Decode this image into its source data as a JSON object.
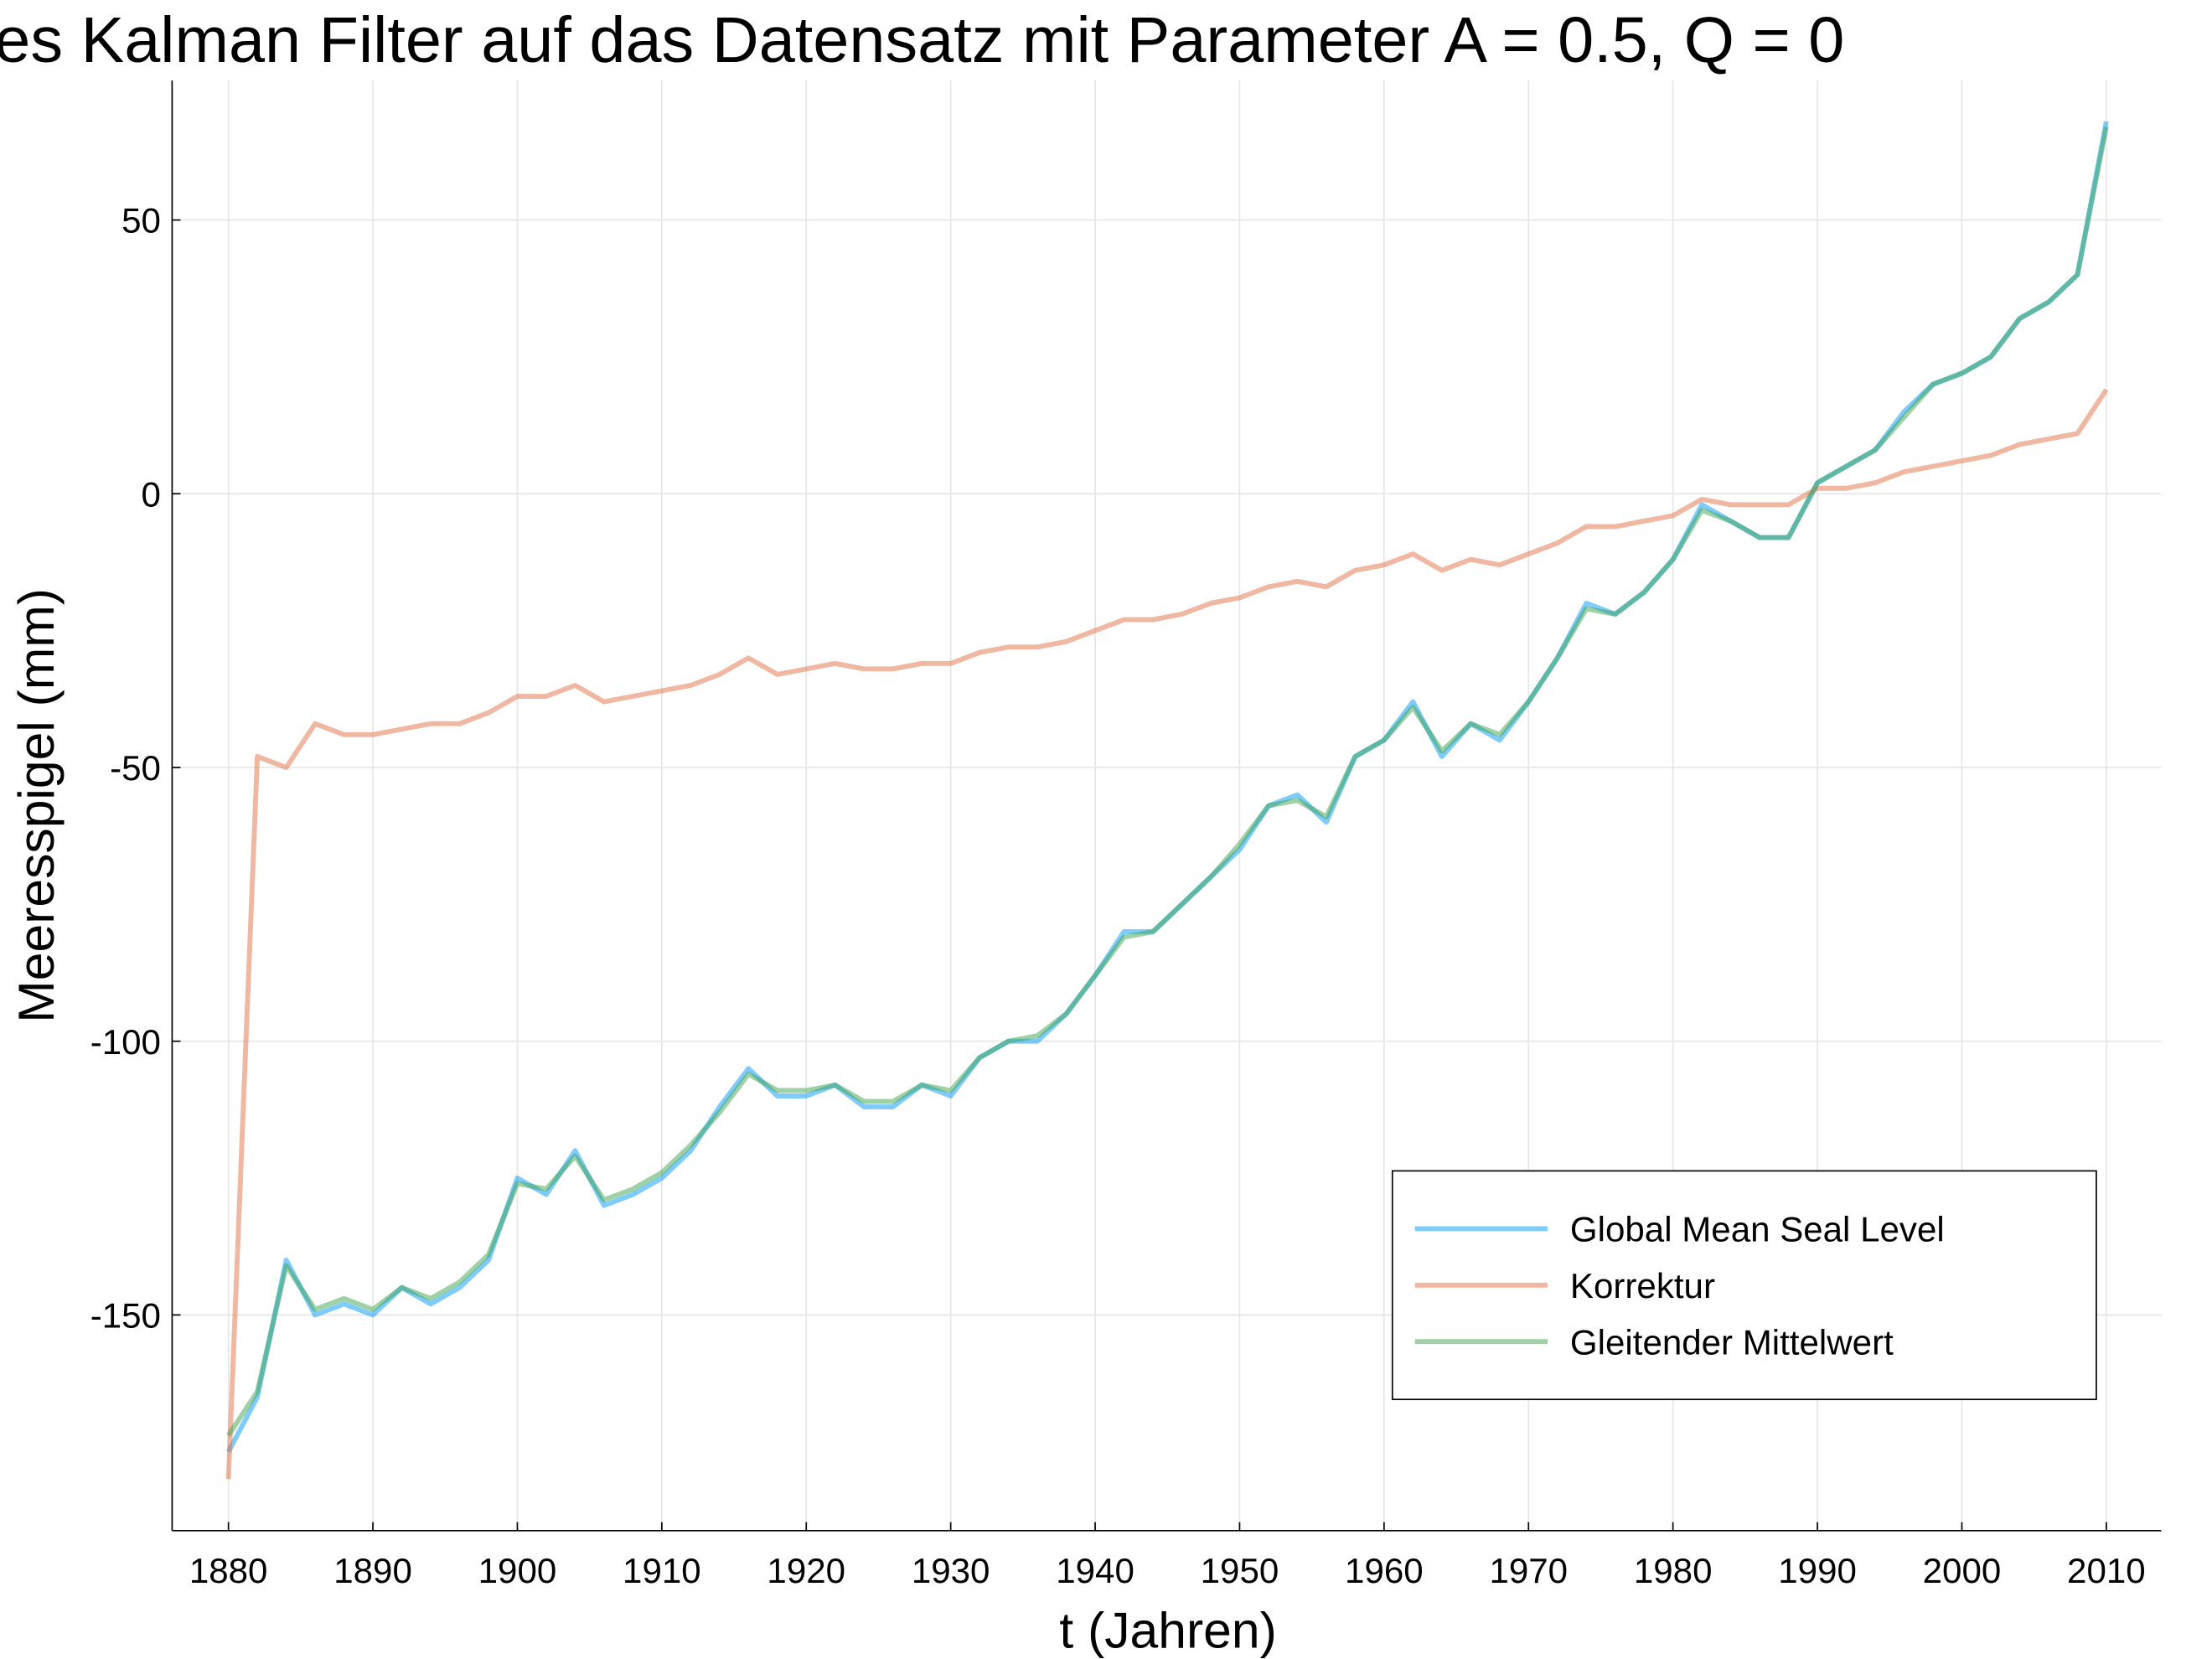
{
  "chart_data": {
    "type": "line",
    "title": "es Kalman Filter auf das Datensatz mit Parameter A = 0.5, Q = 0",
    "x_label": "t (Jahren)",
    "y_label": "Meeresspigel (mm)",
    "x": [
      1880,
      1882,
      1884,
      1886,
      1888,
      1890,
      1892,
      1894,
      1896,
      1898,
      1900,
      1902,
      1904,
      1906,
      1908,
      1910,
      1912,
      1914,
      1916,
      1918,
      1920,
      1922,
      1924,
      1926,
      1928,
      1930,
      1932,
      1934,
      1936,
      1938,
      1940,
      1942,
      1944,
      1946,
      1948,
      1950,
      1952,
      1954,
      1956,
      1958,
      1960,
      1962,
      1964,
      1966,
      1968,
      1970,
      1972,
      1974,
      1976,
      1978,
      1980,
      1982,
      1984,
      1986,
      1988,
      1990,
      1992,
      1994,
      1996,
      1998,
      2000,
      2002,
      2004,
      2006,
      2008,
      2010
    ],
    "series": [
      {
        "name": "Global Mean Seal Level",
        "color": "#009af9",
        "values": [
          -175,
          -165,
          -140,
          -150,
          -148,
          -150,
          -145,
          -148,
          -145,
          -140,
          -125,
          -128,
          -120,
          -130,
          -128,
          -125,
          -120,
          -112,
          -105,
          -110,
          -110,
          -108,
          -112,
          -112,
          -108,
          -110,
          -103,
          -100,
          -100,
          -95,
          -88,
          -80,
          -80,
          -75,
          -70,
          -65,
          -57,
          -55,
          -60,
          -48,
          -45,
          -38,
          -48,
          -42,
          -45,
          -38,
          -30,
          -20,
          -22,
          -18,
          -12,
          -2,
          -5,
          -8,
          -8,
          2,
          5,
          8,
          15,
          20,
          22,
          25,
          32,
          35,
          40,
          68
        ]
      },
      {
        "name": "Korrektur",
        "color": "#e26f46",
        "values": [
          -180,
          -48,
          -50,
          -42,
          -44,
          -44,
          -43,
          -42,
          -42,
          -40,
          -37,
          -37,
          -35,
          -38,
          -37,
          -36,
          -35,
          -33,
          -30,
          -33,
          -32,
          -31,
          -32,
          -32,
          -31,
          -31,
          -29,
          -28,
          -28,
          -27,
          -25,
          -23,
          -23,
          -22,
          -20,
          -19,
          -17,
          -16,
          -17,
          -14,
          -13,
          -11,
          -14,
          -12,
          -13,
          -11,
          -9,
          -6,
          -6,
          -5,
          -4,
          -1,
          -2,
          -2,
          -2,
          1,
          1,
          2,
          4,
          5,
          6,
          7,
          9,
          10,
          11,
          19
        ]
      },
      {
        "name": "Gleitender Mittelwert",
        "color": "#3da44d",
        "values": [
          -172,
          -164,
          -141,
          -149,
          -147,
          -149,
          -145,
          -147,
          -144,
          -139,
          -126,
          -127,
          -121,
          -129,
          -127,
          -124,
          -119,
          -113,
          -106,
          -109,
          -109,
          -108,
          -111,
          -111,
          -108,
          -109,
          -103,
          -100,
          -99,
          -95,
          -88,
          -81,
          -80,
          -75,
          -70,
          -64,
          -57,
          -56,
          -59,
          -48,
          -45,
          -39,
          -47,
          -42,
          -44,
          -38,
          -30,
          -21,
          -22,
          -18,
          -12,
          -3,
          -5,
          -8,
          -8,
          2,
          5,
          8,
          14,
          20,
          22,
          25,
          32,
          35,
          40,
          67
        ]
      }
    ],
    "xlim": [
      1876.1,
      2013.8
    ],
    "ylim": [
      -189.4,
      75.5
    ],
    "xticks": [
      1880,
      1890,
      1900,
      1910,
      1920,
      1930,
      1940,
      1950,
      1960,
      1970,
      1980,
      1990,
      2000,
      2010
    ],
    "yticks": [
      -150,
      -100,
      -50,
      0,
      50
    ],
    "grid": true,
    "legend": "bottom right"
  }
}
